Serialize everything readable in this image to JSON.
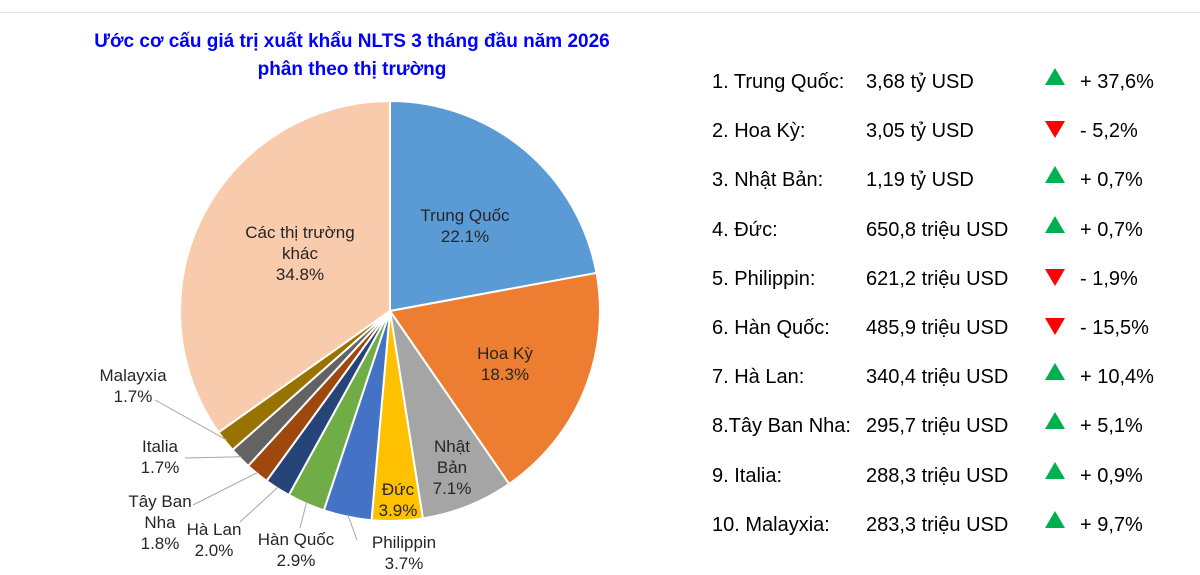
{
  "chart_data": {
    "type": "pie",
    "title": [
      "Ước cơ cấu giá trị xuất khẩu NLTS 3 tháng đầu năm 2026",
      "phân theo thị trường"
    ],
    "unit": "%",
    "slices": [
      {
        "name": "Trung Quốc",
        "value": 22.1,
        "color": "#5B9BD5"
      },
      {
        "name": "Hoa Kỳ",
        "value": 18.3,
        "color": "#ED7D31"
      },
      {
        "name": "Nhật Bản",
        "value": 7.1,
        "color": "#A5A5A5"
      },
      {
        "name": "Đức",
        "value": 3.9,
        "color": "#FFC000"
      },
      {
        "name": "Philippin",
        "value": 3.7,
        "color": "#4472C4"
      },
      {
        "name": "Hàn Quốc",
        "value": 2.9,
        "color": "#70AD47"
      },
      {
        "name": "Hà Lan",
        "value": 2.0,
        "color": "#264478"
      },
      {
        "name": "Tây Ban Nha",
        "value": 1.8,
        "color": "#9E480E"
      },
      {
        "name": "Italia",
        "value": 1.7,
        "color": "#636363"
      },
      {
        "name": "Malayxia",
        "value": 1.7,
        "color": "#997300"
      },
      {
        "name": "Các thị trường khác",
        "value": 34.8,
        "color": "#F8CBAD"
      }
    ]
  },
  "market_list": {
    "colors": {
      "up": "#00B050",
      "down": "#FF0000"
    },
    "rows": [
      {
        "label": "1. Trung Quốc:",
        "value": "3,68 tỷ USD",
        "trend": "up",
        "change": "+ 37,6%"
      },
      {
        "label": "2. Hoa Kỳ:",
        "value": "3,05 tỷ USD",
        "trend": "down",
        "change": "- 5,2%"
      },
      {
        "label": "3. Nhật Bản:",
        "value": "1,19 tỷ USD",
        "trend": "up",
        "change": "+ 0,7%"
      },
      {
        "label": "4. Đức:",
        "value": "650,8 triệu USD",
        "trend": "up",
        "change": "+ 0,7%"
      },
      {
        "label": "5. Philippin:",
        "value": "621,2 triệu USD",
        "trend": "down",
        "change": "- 1,9%"
      },
      {
        "label": "6. Hàn Quốc:",
        "value": "485,9 triệu USD",
        "trend": "down",
        "change": "- 15,5%"
      },
      {
        "label": "7. Hà Lan:",
        "value": "340,4 triệu USD",
        "trend": "up",
        "change": "+ 10,4%"
      },
      {
        "label": "8.Tây Ban Nha:",
        "value": "295,7 triệu USD",
        "trend": "up",
        "change": "+ 5,1%"
      },
      {
        "label": "9. Italia:",
        "value": "288,3 triệu USD",
        "trend": "up",
        "change": "+ 0,9%"
      },
      {
        "label": "10. Malayxia:",
        "value": "283,3 triệu USD",
        "trend": "up",
        "change": "+ 9,7%"
      }
    ]
  }
}
